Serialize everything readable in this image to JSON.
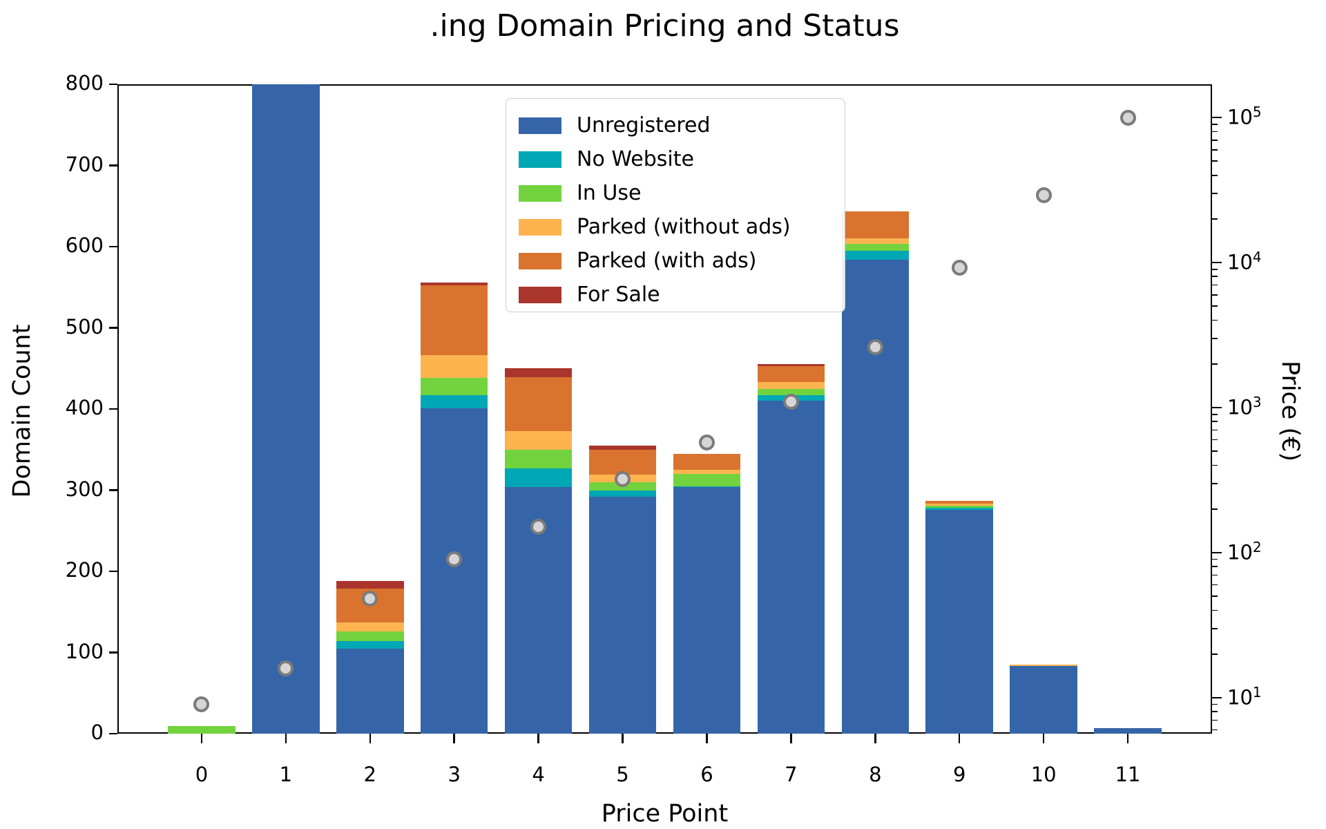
{
  "chart_data": {
    "type": "bar",
    "stacked": true,
    "title": ".ing Domain Pricing and Status",
    "xlabel": "Price Point",
    "ylabel_left": "Domain Count",
    "ylabel_right": "Price (€)",
    "categories": [
      "0",
      "1",
      "2",
      "3",
      "4",
      "5",
      "6",
      "7",
      "8",
      "9",
      "10",
      "11"
    ],
    "series": [
      {
        "name": "Unregistered",
        "color": "#3565a8",
        "values": [
          0,
          800,
          105,
          401,
          304,
          292,
          304,
          410,
          584,
          276,
          84,
          7
        ]
      },
      {
        "name": "No Website",
        "color": "#00a7b5",
        "values": [
          0,
          0,
          9,
          16,
          23,
          8,
          1,
          7,
          11,
          2,
          0,
          0
        ]
      },
      {
        "name": "In Use",
        "color": "#72d33e",
        "values": [
          9,
          0,
          12,
          21,
          23,
          10,
          15,
          8,
          8,
          3,
          0,
          0
        ]
      },
      {
        "name": "Parked (without ads)",
        "color": "#fdb44f",
        "values": [
          0,
          0,
          11,
          28,
          23,
          9,
          5,
          8,
          7,
          2,
          1,
          0
        ]
      },
      {
        "name": "Parked (with ads)",
        "color": "#d9732e",
        "values": [
          0,
          0,
          42,
          86,
          66,
          31,
          20,
          20,
          33,
          4,
          0,
          0
        ]
      },
      {
        "name": "For Sale",
        "color": "#a9352c",
        "values": [
          0,
          0,
          9,
          4,
          11,
          5,
          0,
          2,
          0,
          0,
          0,
          0
        ]
      }
    ],
    "scatter_overlay": {
      "name": "Price (€), right log axis",
      "marker_fill": "#d6d6d6",
      "marker_edge": "#7b7b7b",
      "values": [
        9,
        16,
        48,
        90,
        150,
        320,
        575,
        1100,
        2600,
        9200,
        29000,
        100000
      ]
    },
    "ylim_left": [
      0,
      800
    ],
    "yticks_left": [
      0,
      100,
      200,
      300,
      400,
      500,
      600,
      700,
      800
    ],
    "yscale_right": "log",
    "ylim_right_log10": [
      0.752,
      5.229
    ],
    "yticks_right_exponents": [
      1,
      2,
      3,
      4,
      5
    ],
    "grid": false,
    "legend_position": "upper center",
    "notes": "Bar at price point 1 is clipped at the y-axis maximum of 800."
  }
}
